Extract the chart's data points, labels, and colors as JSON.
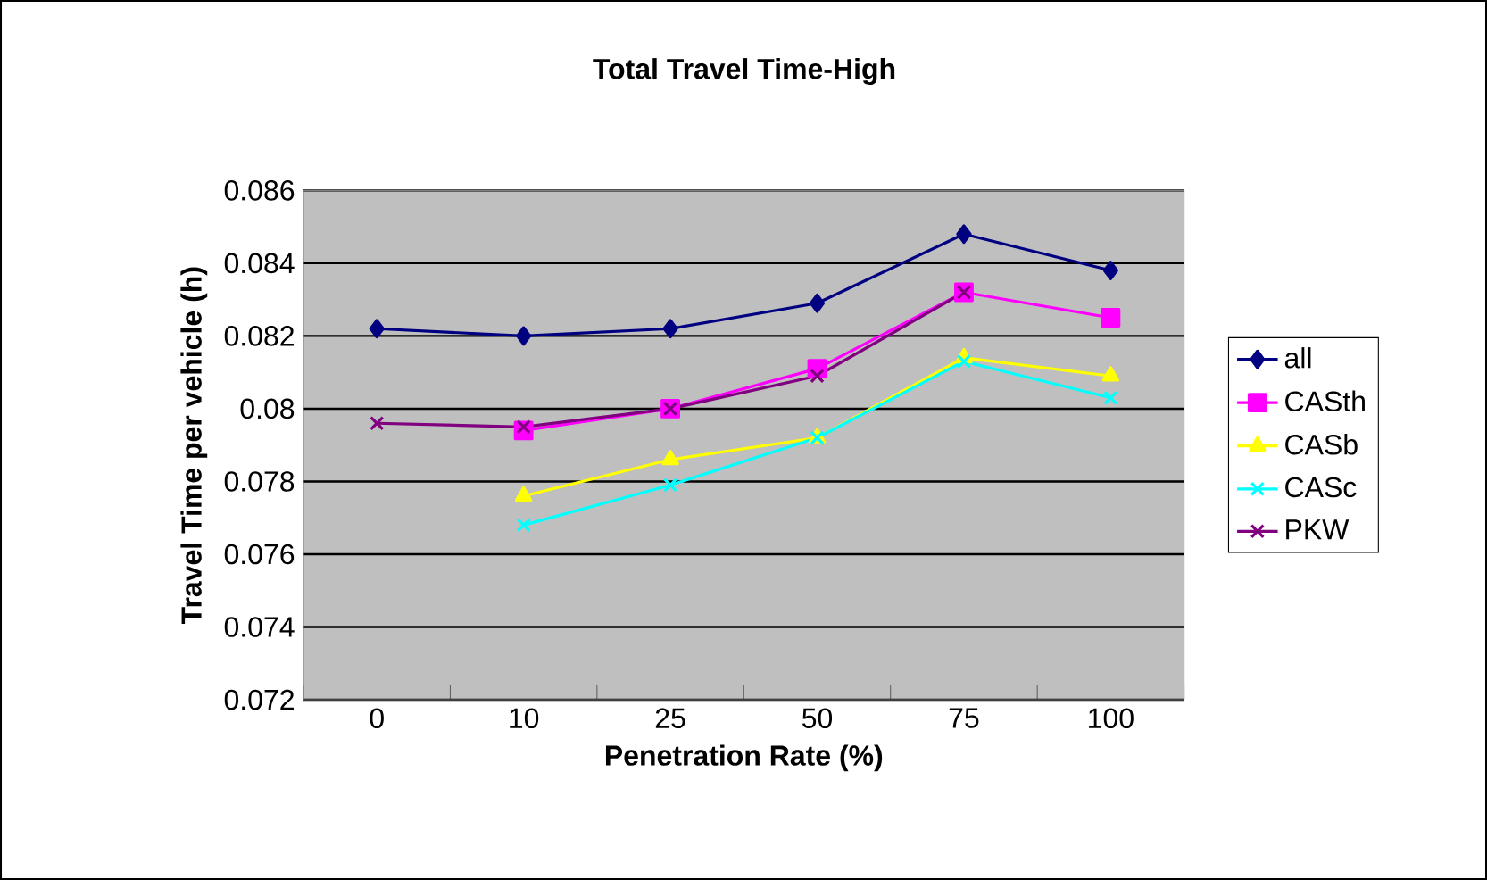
{
  "chart_data": {
    "type": "line",
    "title": "Total Travel Time-High",
    "xlabel": "Penetration Rate (%)",
    "ylabel": "Travel Time per vehicle (h)",
    "categories": [
      "0",
      "10",
      "25",
      "50",
      "75",
      "100"
    ],
    "ylim": [
      0.072,
      0.086
    ],
    "yticks": [
      0.072,
      0.074,
      0.076,
      0.078,
      0.08,
      0.082,
      0.084,
      0.086
    ],
    "grid": "y",
    "legend": "right",
    "series": [
      {
        "name": "all",
        "color": "#000080",
        "marker": "diamond",
        "values": [
          0.0822,
          0.082,
          0.0822,
          0.0829,
          0.0848,
          0.0838
        ]
      },
      {
        "name": "CASth",
        "color": "#ff00ff",
        "marker": "square",
        "values": [
          null,
          0.0794,
          0.08,
          0.0811,
          0.0832,
          0.0825
        ]
      },
      {
        "name": "CASb",
        "color": "#ffff00",
        "marker": "triangle",
        "values": [
          null,
          0.0776,
          0.0786,
          0.0792,
          0.0814,
          0.0809
        ]
      },
      {
        "name": "CASc",
        "color": "#00ffff",
        "marker": "cross",
        "values": [
          null,
          0.0768,
          0.0779,
          0.0792,
          0.0813,
          0.0803
        ]
      },
      {
        "name": "PKW",
        "color": "#800080",
        "marker": "cross",
        "values": [
          0.0796,
          0.0795,
          0.08,
          0.0809,
          0.0832,
          null
        ]
      }
    ]
  }
}
